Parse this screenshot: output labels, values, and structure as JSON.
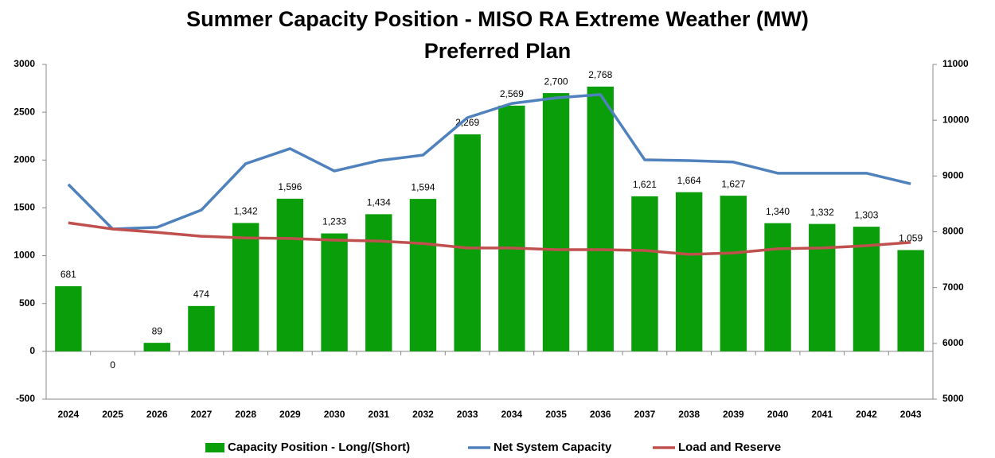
{
  "chart_data": {
    "type": "bar_line",
    "title": "Summer Capacity Position - MISO RA Extreme Weather (MW)",
    "subtitle": "Preferred Plan",
    "categories": [
      "2024",
      "2025",
      "2026",
      "2027",
      "2028",
      "2029",
      "2030",
      "2031",
      "2032",
      "2033",
      "2034",
      "2035",
      "2036",
      "2037",
      "2038",
      "2039",
      "2040",
      "2041",
      "2042",
      "2043"
    ],
    "series": [
      {
        "name": "Capacity Position - Long/(Short)",
        "type": "bar",
        "color": "#0a9e0a",
        "values": [
          681,
          0,
          89,
          474,
          1342,
          1596,
          1233,
          1434,
          1594,
          2269,
          2569,
          2700,
          2768,
          1621,
          1664,
          1627,
          1340,
          1332,
          1303,
          1059
        ],
        "value_labels": [
          "681",
          "0",
          "89",
          "474",
          "1,342",
          "1,596",
          "1,233",
          "1,434",
          "1,594",
          "2,269",
          "2,569",
          "2,700",
          "2,768",
          "1,621",
          "1,664",
          "1,627",
          "1,340",
          "1,332",
          "1,303",
          "1,059"
        ]
      },
      {
        "name": "Net System Capacity",
        "type": "line",
        "axis": "y2",
        "color": "#4f81bd",
        "values": [
          8850,
          8050,
          8080,
          8390,
          9220,
          9490,
          9090,
          9275,
          9375,
          10045,
          10300,
          10400,
          10460,
          9290,
          9275,
          9250,
          9050,
          9050,
          9050,
          8860
        ]
      },
      {
        "name": "Load and Reserve",
        "type": "line",
        "axis": "y2",
        "color": "#c0504d",
        "values": [
          8160,
          8050,
          7990,
          7920,
          7890,
          7880,
          7850,
          7835,
          7790,
          7710,
          7710,
          7680,
          7680,
          7665,
          7595,
          7620,
          7695,
          7710,
          7750,
          7810
        ]
      }
    ],
    "ylim": [
      -500,
      3000
    ],
    "yticks": [
      -500,
      0,
      500,
      1000,
      1500,
      2000,
      2500,
      3000
    ],
    "y2lim": [
      5000,
      11000
    ],
    "y2ticks": [
      5000,
      6000,
      7000,
      8000,
      9000,
      10000,
      11000
    ],
    "grid": false,
    "legend": "bottom"
  }
}
